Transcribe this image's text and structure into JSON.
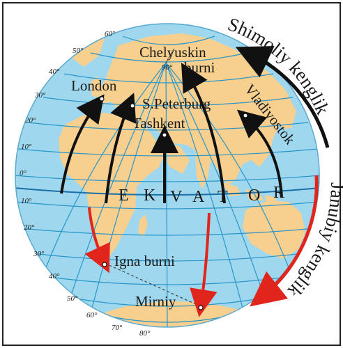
{
  "title": "",
  "colors": {
    "ocean": "#9fd8ee",
    "land": "#f7cf8e",
    "grid": "#2a95c8",
    "north_arrow": "#111111",
    "south_arrow": "#e0261c"
  },
  "places": {
    "chelyuskin": "Chelyuskin",
    "chelyuskin_2": "burni",
    "london": "London",
    "petersburg": "S.Peterburg",
    "tashkent": "Tashkent",
    "vladivostok": "Vladivostok",
    "igna": "Igna burni",
    "mirniy": "Mirniy"
  },
  "equator_letters": [
    "E",
    "K",
    "V",
    "A",
    "T",
    "O",
    "R"
  ],
  "pole_label": "90°",
  "north_label": "Shimoliy kenglik",
  "south_label": "Janubiy kenglik",
  "lat_north_labels": [
    "0°",
    "10°",
    "20°",
    "30°",
    "40°",
    "50°",
    "60°"
  ],
  "lat_south_labels": [
    "10°",
    "20°",
    "30°",
    "40°",
    "50°",
    "60°",
    "70°",
    "80°"
  ]
}
